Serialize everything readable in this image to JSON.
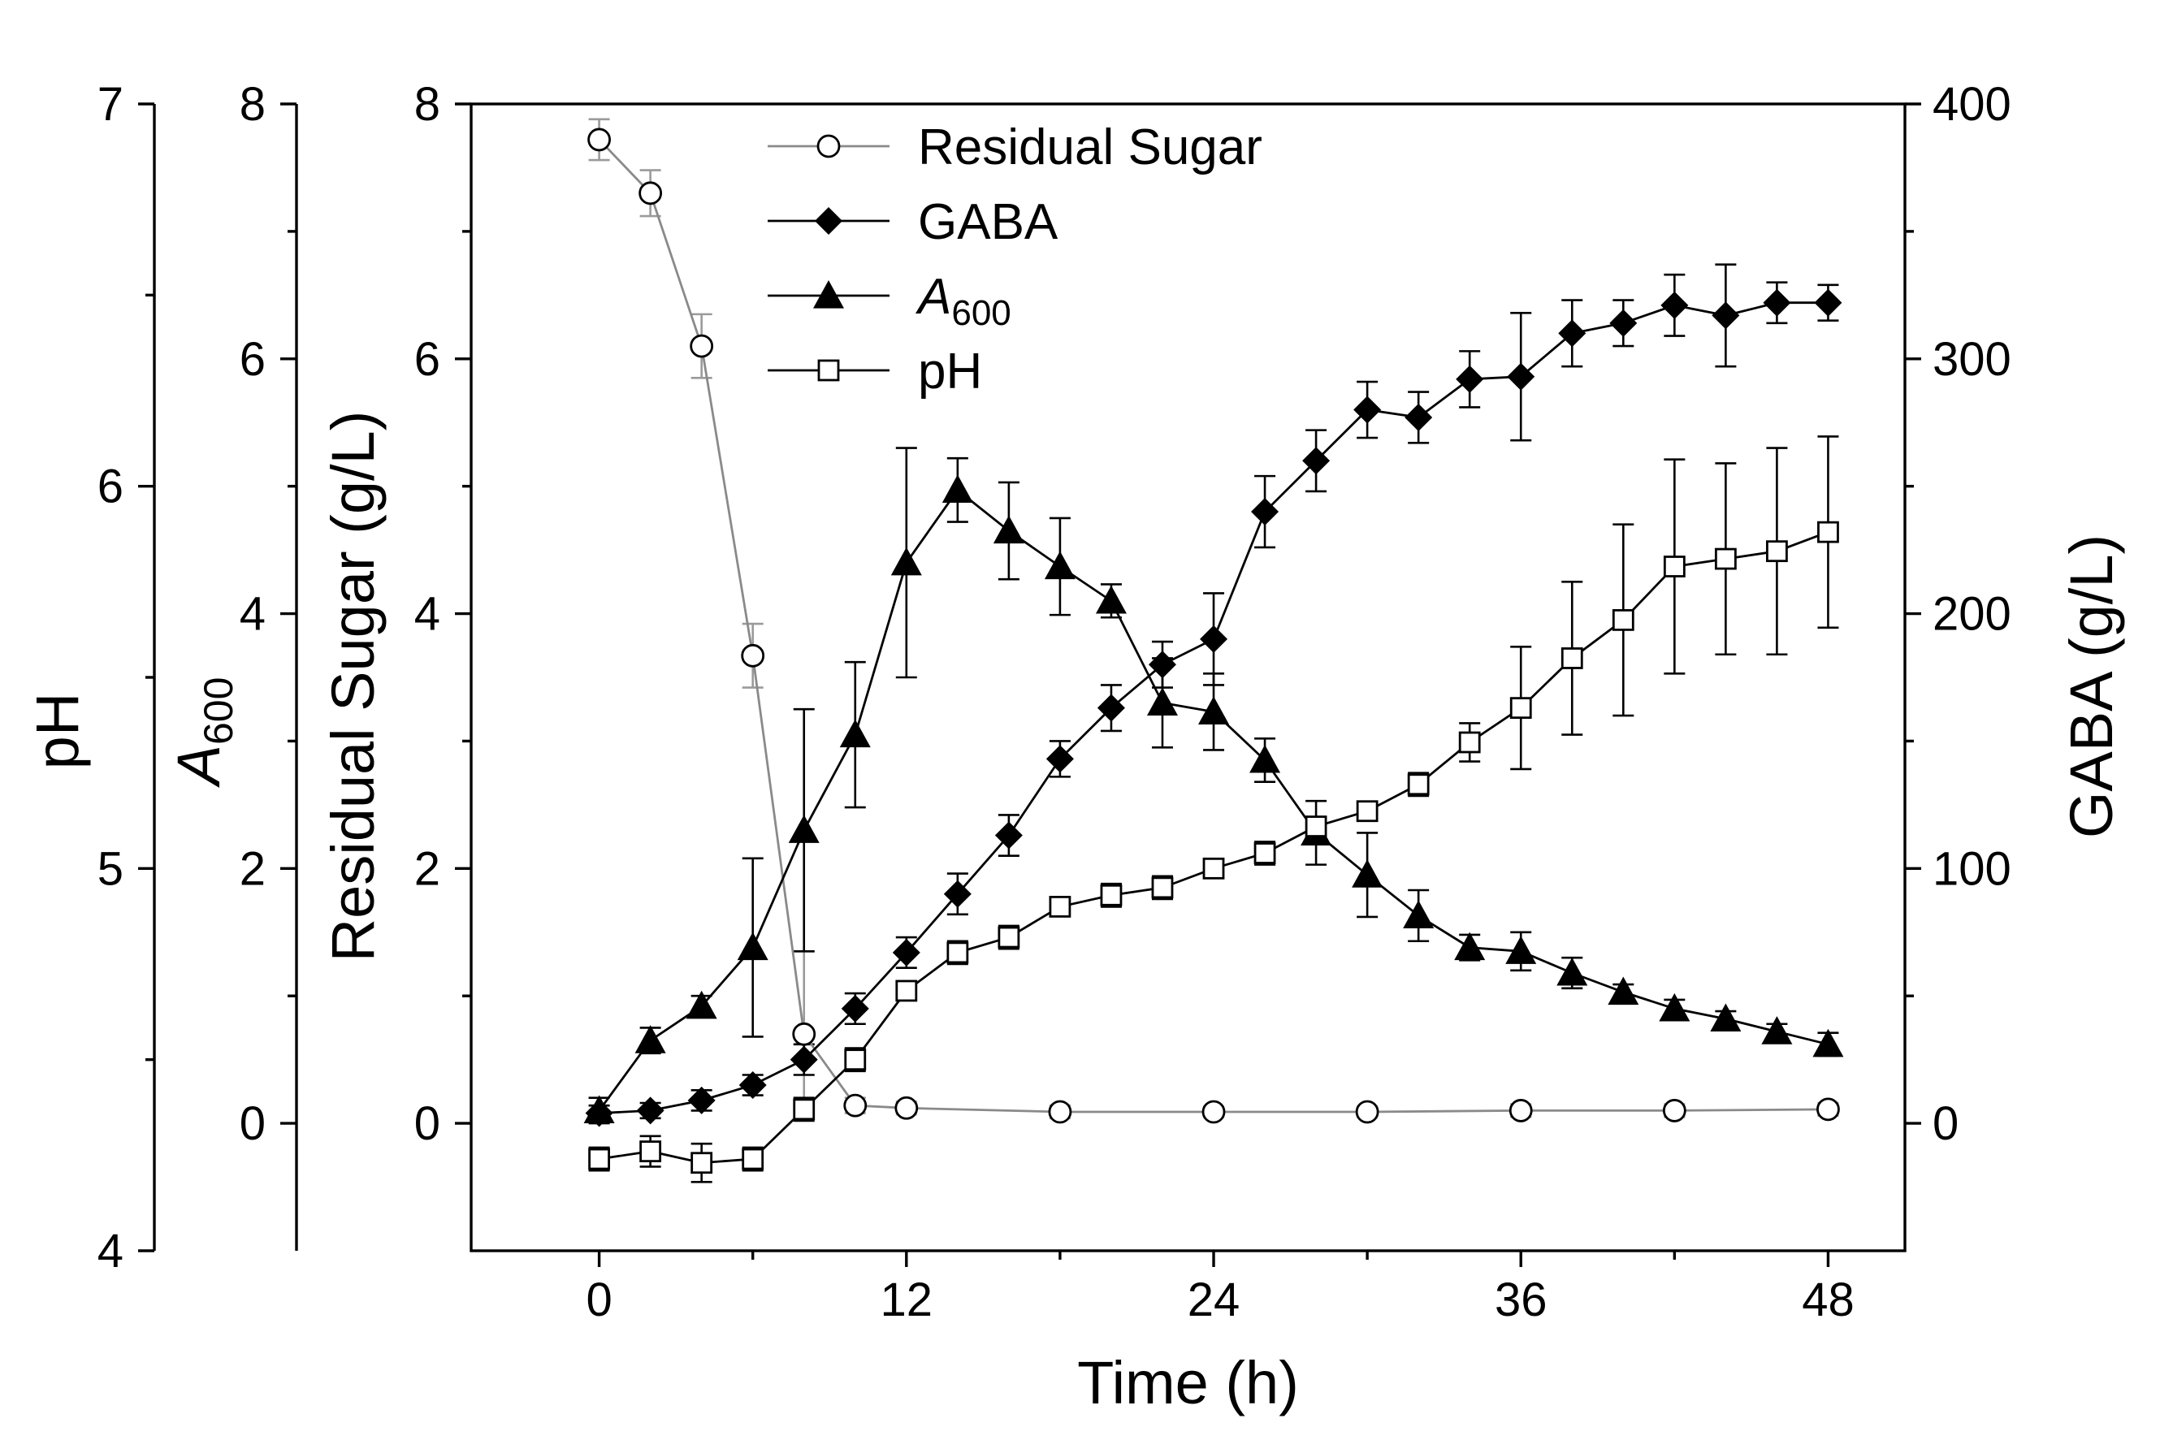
{
  "chart_data": {
    "type": "line",
    "title": "",
    "xlabel": "Time (h)",
    "xlim": [
      -5,
      51
    ],
    "xticks": [
      0,
      12,
      24,
      36,
      48
    ],
    "colors": {
      "ink": "#000000",
      "light_line": "#8a8a8a",
      "light_bar": "#9a9a9a"
    },
    "axes": {
      "ph": {
        "label": "pH",
        "lim": [
          4,
          7
        ],
        "ticks": [
          4,
          5,
          6,
          7
        ]
      },
      "a600": {
        "label": "A",
        "label_sub": "600",
        "lim": [
          -1,
          8
        ],
        "ticks": [
          0,
          2,
          4,
          6,
          8
        ]
      },
      "sugar": {
        "label": "Residual Sugar (g/L)",
        "lim": [
          -1,
          8
        ],
        "ticks": [
          0,
          2,
          4,
          6,
          8
        ]
      },
      "gaba": {
        "label": "GABA (g/L)",
        "lim": [
          -50,
          400
        ],
        "ticks": [
          0,
          100,
          200,
          300,
          400
        ]
      }
    },
    "series": [
      {
        "name": "Residual Sugar",
        "axis": "sugar",
        "marker": "circle-open",
        "line": "light",
        "x": [
          0,
          2,
          4,
          6,
          8,
          10,
          12,
          18,
          24,
          30,
          36,
          42,
          48
        ],
        "y": [
          7.72,
          7.3,
          6.1,
          3.67,
          0.7,
          0.14,
          0.12,
          0.09,
          0.09,
          0.09,
          0.1,
          0.1,
          0.11
        ],
        "err": [
          0.16,
          0.18,
          0.25,
          0.25,
          0.65,
          0.06,
          0.05,
          0.05,
          0.04,
          0.04,
          0.05,
          0.05,
          0.05
        ]
      },
      {
        "name": "GABA",
        "axis": "gaba",
        "marker": "diamond-filled",
        "line": "dark",
        "x": [
          0,
          2,
          4,
          6,
          8,
          10,
          12,
          14,
          16,
          18,
          20,
          22,
          24,
          26,
          28,
          30,
          32,
          34,
          36,
          38,
          40,
          42,
          44,
          46,
          48
        ],
        "y": [
          4,
          5,
          9,
          15,
          25,
          45,
          67,
          90,
          113,
          143,
          163,
          180,
          190,
          240,
          260,
          280,
          277,
          292,
          293,
          310,
          314,
          321,
          317,
          322,
          322
        ],
        "err": [
          3,
          3,
          4,
          4,
          6,
          6,
          6,
          8,
          8,
          7,
          9,
          9,
          18,
          14,
          12,
          11,
          10,
          11,
          25,
          13,
          9,
          12,
          20,
          8,
          7
        ]
      },
      {
        "name": "A",
        "name_sub": "600",
        "axis": "a600",
        "marker": "triangle-filled",
        "line": "dark",
        "x": [
          0,
          2,
          4,
          6,
          8,
          10,
          12,
          14,
          16,
          18,
          20,
          22,
          24,
          26,
          28,
          30,
          32,
          34,
          36,
          38,
          40,
          42,
          44,
          46,
          48
        ],
        "y": [
          0.1,
          0.65,
          0.92,
          1.38,
          2.3,
          3.05,
          4.4,
          4.97,
          4.65,
          4.37,
          4.1,
          3.3,
          3.23,
          2.85,
          2.28,
          1.95,
          1.63,
          1.38,
          1.35,
          1.18,
          1.03,
          0.9,
          0.82,
          0.72,
          0.62
        ],
        "err": [
          0.1,
          0.1,
          0.08,
          0.7,
          0.95,
          0.57,
          0.9,
          0.25,
          0.38,
          0.38,
          0.13,
          0.35,
          0.3,
          0.17,
          0.25,
          0.33,
          0.2,
          0.1,
          0.15,
          0.12,
          0.06,
          0.07,
          0.06,
          0.06,
          0.09
        ]
      },
      {
        "name": "pH",
        "axis": "ph",
        "marker": "square-open",
        "line": "dark",
        "x": [
          0,
          2,
          4,
          6,
          8,
          10,
          12,
          14,
          16,
          18,
          20,
          22,
          24,
          26,
          28,
          30,
          32,
          34,
          36,
          38,
          40,
          42,
          44,
          46,
          48
        ],
        "y": [
          4.24,
          4.26,
          4.23,
          4.24,
          4.37,
          4.5,
          4.68,
          4.78,
          4.82,
          4.9,
          4.93,
          4.95,
          5.0,
          5.04,
          5.11,
          5.15,
          5.22,
          5.33,
          5.42,
          5.55,
          5.65,
          5.79,
          5.81,
          5.83,
          5.88
        ],
        "err": [
          0.03,
          0.04,
          0.05,
          0.03,
          0.03,
          0.03,
          0.02,
          0.03,
          0.03,
          0.02,
          0.03,
          0.03,
          0.02,
          0.03,
          0.02,
          0.02,
          0.03,
          0.05,
          0.16,
          0.2,
          0.25,
          0.28,
          0.25,
          0.27,
          0.25
        ]
      }
    ],
    "legend": {
      "position": "top-center"
    }
  }
}
